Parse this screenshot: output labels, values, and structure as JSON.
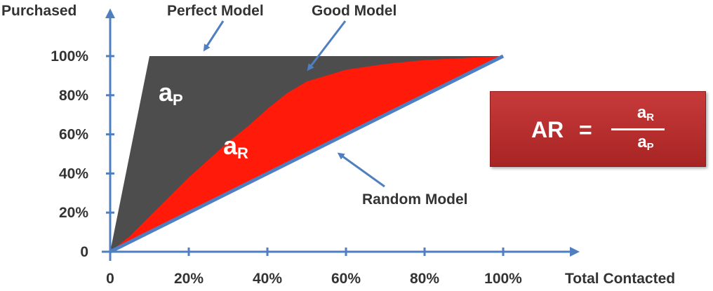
{
  "chart_data": {
    "type": "area",
    "title": "",
    "xlabel": "Total Contacted",
    "ylabel": "Purchased",
    "x_ticks": [
      "0",
      "20%",
      "40%",
      "60%",
      "80%",
      "100%"
    ],
    "y_ticks": [
      "0",
      "20%",
      "40%",
      "60%",
      "80%",
      "100%"
    ],
    "xlim": [
      0,
      100
    ],
    "ylim": [
      0,
      100
    ],
    "series": [
      {
        "name": "Perfect Model",
        "color": "#4d4d4d",
        "points": [
          [
            0,
            0
          ],
          [
            10,
            100
          ],
          [
            100,
            100
          ]
        ]
      },
      {
        "name": "Good Model",
        "color": "#ff1a0a",
        "points": [
          [
            0,
            0
          ],
          [
            5,
            8
          ],
          [
            10,
            18
          ],
          [
            15,
            28
          ],
          [
            20,
            38
          ],
          [
            25,
            47
          ],
          [
            30,
            56
          ],
          [
            35,
            64
          ],
          [
            40,
            73
          ],
          [
            45,
            81
          ],
          [
            50,
            87
          ],
          [
            60,
            93
          ],
          [
            70,
            96
          ],
          [
            80,
            98
          ],
          [
            90,
            99
          ],
          [
            100,
            100
          ]
        ]
      },
      {
        "name": "Random Model",
        "color": "#4f7fc0",
        "points": [
          [
            0,
            0
          ],
          [
            100,
            100
          ]
        ]
      }
    ],
    "annotations": {
      "perfect": "Perfect Model",
      "good": "Good Model",
      "random": "Random Model",
      "a_p_main": "a",
      "a_p_sub": "P",
      "a_r_main": "a",
      "a_r_sub": "R"
    },
    "formula": {
      "left": "AR",
      "equals": "=",
      "num_main": "a",
      "num_sub": "R",
      "den_main": "a",
      "den_sub": "P"
    },
    "colors": {
      "axis": "#4f7fc0",
      "text": "#333333"
    }
  }
}
